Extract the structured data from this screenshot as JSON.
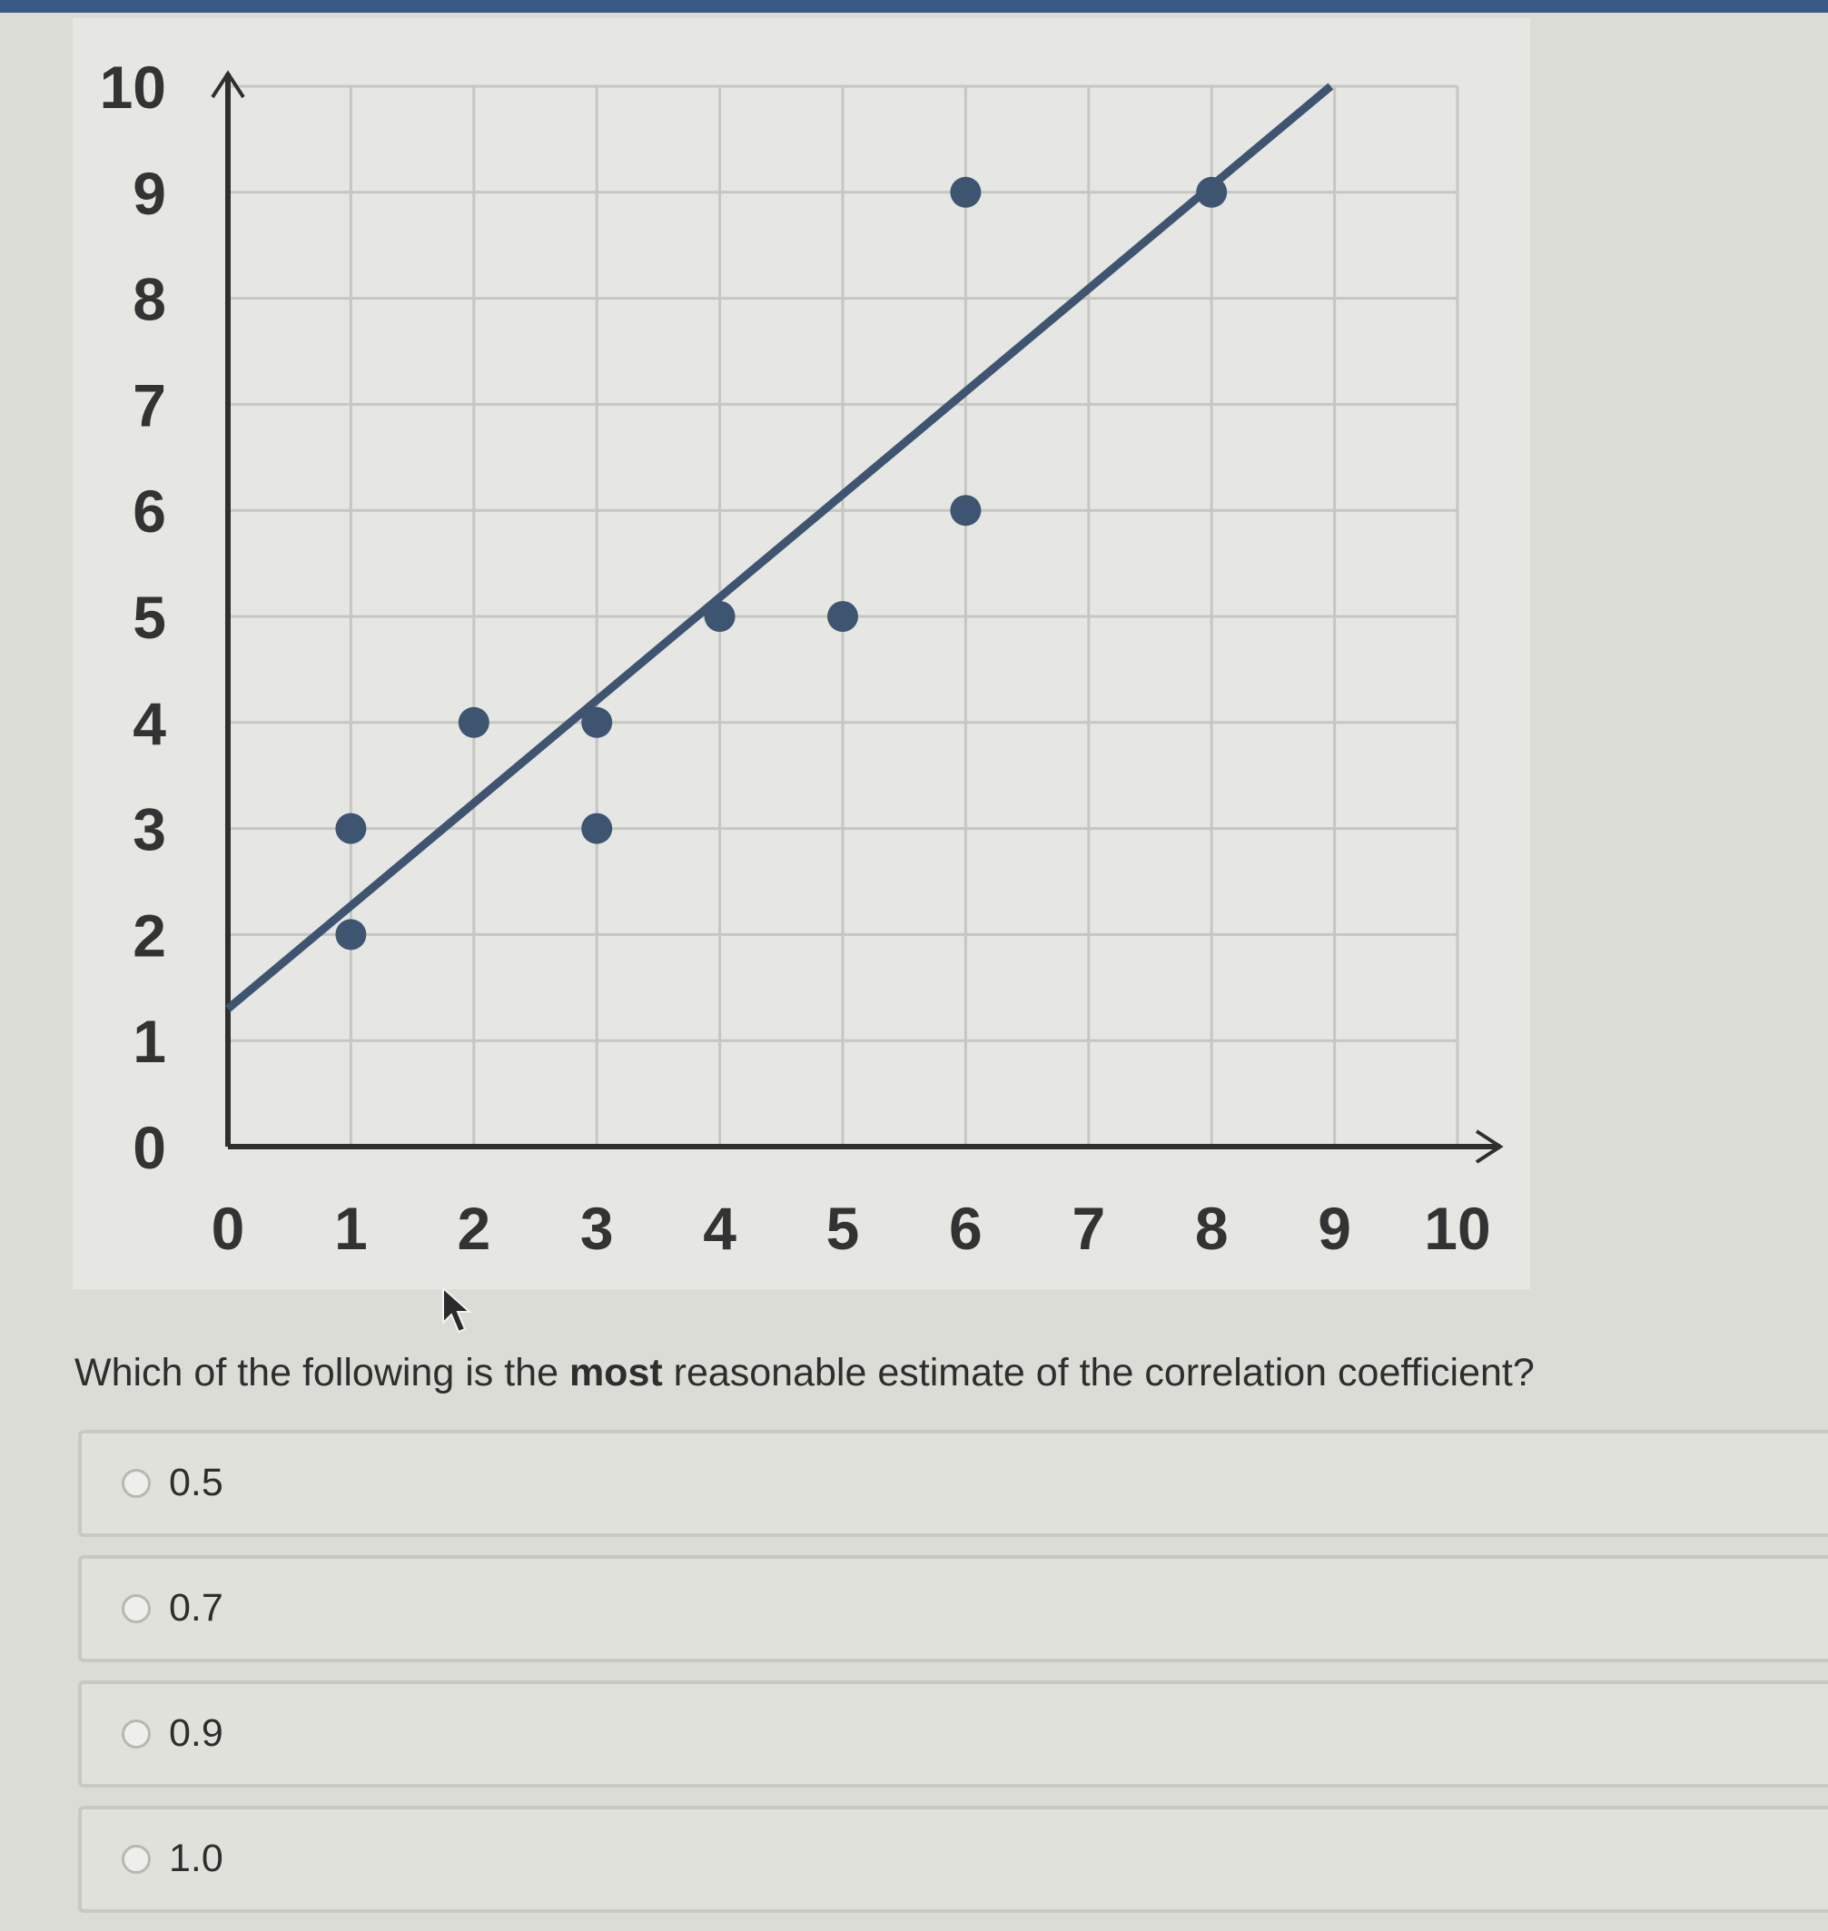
{
  "chart_data": {
    "type": "scatter",
    "xlim": [
      0,
      10
    ],
    "ylim": [
      0,
      10
    ],
    "x_ticks": [
      "0",
      "1",
      "2",
      "3",
      "4",
      "5",
      "6",
      "7",
      "8",
      "9",
      "10"
    ],
    "y_ticks": [
      "0",
      "1",
      "2",
      "3",
      "4",
      "5",
      "6",
      "7",
      "8",
      "9",
      "10"
    ],
    "grid": true,
    "points": [
      {
        "x": 1,
        "y": 2
      },
      {
        "x": 1,
        "y": 3
      },
      {
        "x": 2,
        "y": 4
      },
      {
        "x": 3,
        "y": 3
      },
      {
        "x": 3,
        "y": 4
      },
      {
        "x": 4,
        "y": 5
      },
      {
        "x": 5,
        "y": 5
      },
      {
        "x": 6,
        "y": 6
      },
      {
        "x": 6,
        "y": 9
      },
      {
        "x": 8,
        "y": 9
      }
    ],
    "trend_line": {
      "intercept": 1.3,
      "slope": 0.97
    },
    "colors": {
      "marker": "#3d5571",
      "axis": "#2f2f2f",
      "grid": "#c6c6c2"
    }
  },
  "question": {
    "before": "Which of the following is the ",
    "bold": "most",
    "after": " reasonable estimate of the correlation coefficient?"
  },
  "options": [
    "0.5",
    "0.7",
    "0.9",
    "1.0"
  ]
}
